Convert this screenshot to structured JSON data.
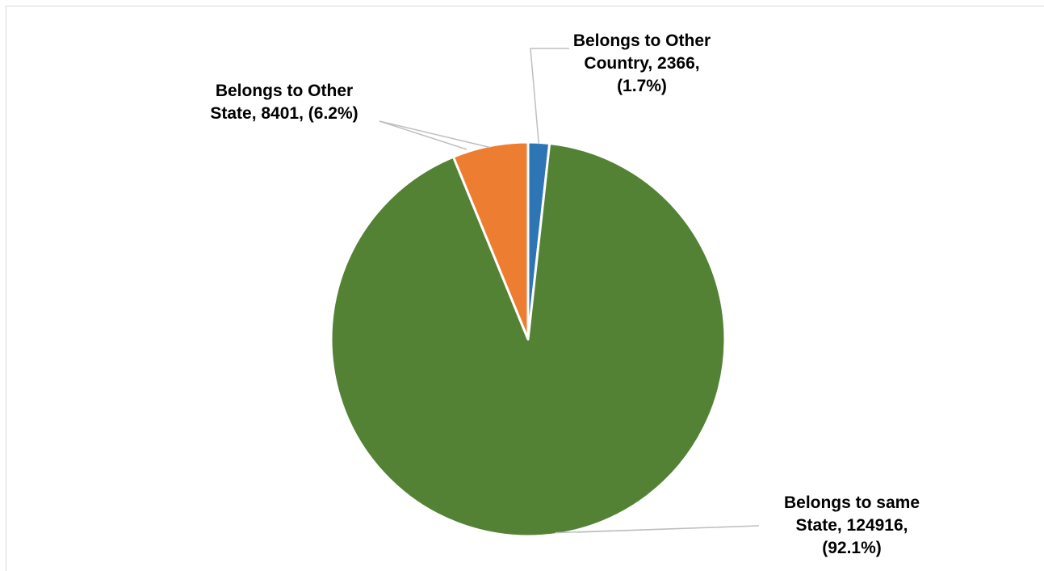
{
  "chart_data": {
    "type": "pie",
    "start_angle_deg": 0,
    "direction": "clockwise",
    "slices": [
      {
        "name": "Belongs to Other Country",
        "value": 2366,
        "percent": "1.7%",
        "color": "#2e75b6",
        "label_lines": [
          "Belongs to Other",
          "Country, 2366,",
          "(1.7%)"
        ]
      },
      {
        "name": "Belongs to same State",
        "value": 124916,
        "percent": "92.1%",
        "color": "#548235",
        "label_lines": [
          "Belongs to same",
          "State, 124916,",
          "(92.1%)"
        ]
      },
      {
        "name": "Belongs to Other State",
        "value": 8401,
        "percent": "6.2%",
        "color": "#ed7d31",
        "label_lines": [
          "Belongs to Other",
          "State, 8401, (6.2%)"
        ]
      }
    ],
    "slice_border_color": "#ffffff",
    "leader_line_color": "#bfbfbf",
    "legend": "none"
  }
}
